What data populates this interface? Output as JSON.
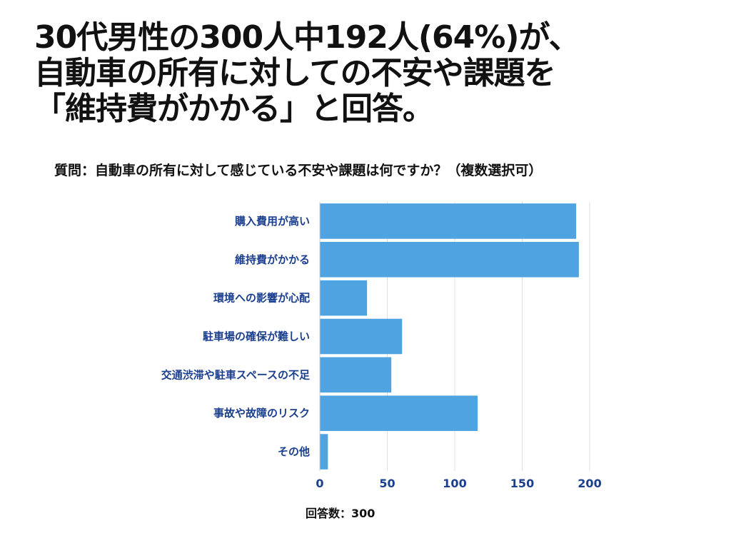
{
  "headline": {
    "lines": [
      "30代男性の300人中192人(64%)が、",
      "自動車の所有に対しての不安や課題を",
      "「維持費がかかる」と回答。"
    ]
  },
  "question": "質問：自動車の所有に対して感じている不安や課題は何ですか？（複数選択可）",
  "respondents_label": "回答数：300",
  "colors": {
    "bar": "#4fa3e0",
    "label": "#1b3f8f",
    "grid": "#e0e0e0"
  },
  "chart_data": {
    "type": "bar",
    "orientation": "horizontal",
    "categories": [
      "購入費用が高い",
      "維持費がかかる",
      "環境への影響が心配",
      "駐車場の確保が難しい",
      "交通渋滞や駐車スペースの不足",
      "事故や故障のリスク",
      "その他"
    ],
    "values": [
      190,
      192,
      35,
      61,
      53,
      117,
      6
    ],
    "xlim": [
      0,
      200
    ],
    "xticks": [
      0,
      50,
      100,
      150,
      200
    ],
    "grid": true
  }
}
